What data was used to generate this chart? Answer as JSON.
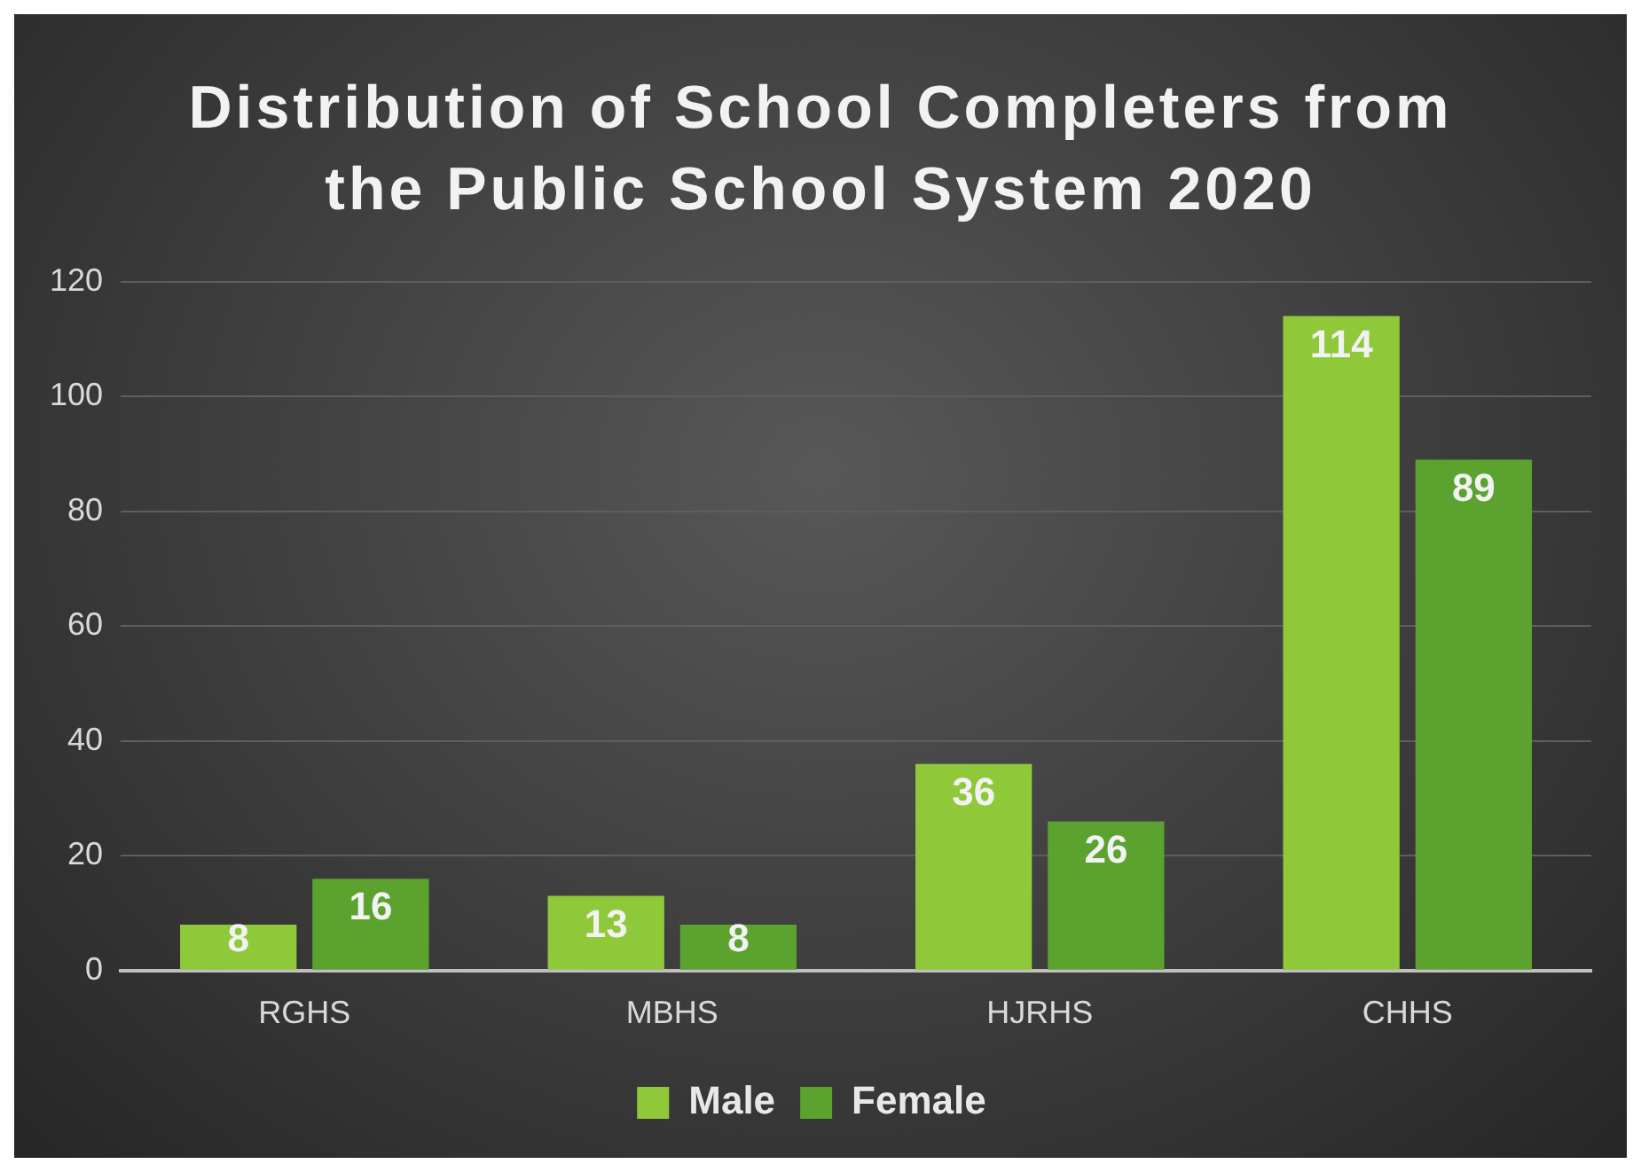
{
  "chart_data": {
    "type": "bar",
    "title": "Distribution of School Completers from the Public School System 2020",
    "categories": [
      "RGHS",
      "MBHS",
      "HJRHS",
      "CHHS"
    ],
    "series": [
      {
        "name": "Male",
        "color": "#8fc93a",
        "values": [
          8,
          13,
          36,
          114
        ]
      },
      {
        "name": "Female",
        "color": "#5ba22e",
        "values": [
          16,
          8,
          26,
          89
        ]
      }
    ],
    "ylim": [
      0,
      120
    ],
    "yticks": [
      0,
      20,
      40,
      60,
      80,
      100,
      120
    ],
    "grid": "y",
    "legend": "bottom",
    "data_labels": true
  }
}
